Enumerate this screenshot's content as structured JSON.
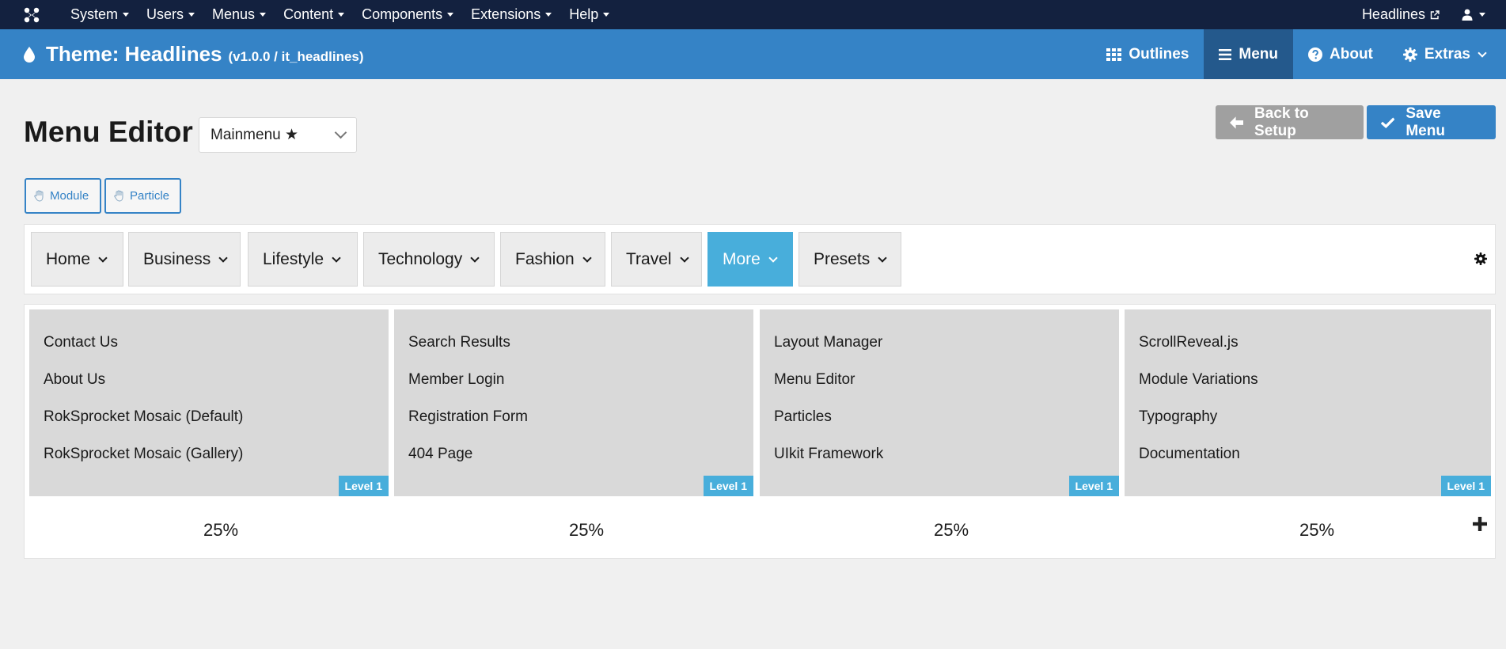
{
  "admin_bar": {
    "nav": [
      {
        "label": "System"
      },
      {
        "label": "Users"
      },
      {
        "label": "Menus"
      },
      {
        "label": "Content"
      },
      {
        "label": "Components"
      },
      {
        "label": "Extensions"
      },
      {
        "label": "Help"
      }
    ],
    "site_label": "Headlines",
    "bg_color": "#13213f"
  },
  "theme_bar": {
    "title": "Theme: Headlines",
    "version": "(v1.0.0 / it_headlines)",
    "nav": [
      {
        "label": "Outlines",
        "icon": "grid-icon"
      },
      {
        "label": "Menu",
        "icon": "bars-icon",
        "active": true
      },
      {
        "label": "About",
        "icon": "question-circle-icon"
      },
      {
        "label": "Extras",
        "icon": "gear-icon"
      }
    ],
    "bg_color": "#3583c6",
    "active_color": "#24598c"
  },
  "page": {
    "title": "Menu Editor",
    "menu_select": "Mainmenu ★",
    "back_label": "Back to Setup",
    "save_label": "Save Menu",
    "pills": {
      "module": "Module",
      "particle": "Particle"
    }
  },
  "menu_items": [
    {
      "label": "Home"
    },
    {
      "label": "Business"
    },
    {
      "label": "Lifestyle"
    },
    {
      "label": "Technology"
    },
    {
      "label": "Fashion"
    },
    {
      "label": "Travel"
    },
    {
      "label": "More",
      "active": true
    },
    {
      "label": "Presets"
    }
  ],
  "columns": [
    {
      "items": [
        "Contact Us",
        "About Us",
        "RokSprocket Mosaic (Default)",
        "RokSprocket Mosaic (Gallery)"
      ],
      "level": "Level 1",
      "width": "25%"
    },
    {
      "items": [
        "Search Results",
        "Member Login",
        "Registration Form",
        "404 Page"
      ],
      "level": "Level 1",
      "width": "25%"
    },
    {
      "items": [
        "Layout Manager",
        "Menu Editor",
        "Particles",
        "UIkit Framework"
      ],
      "level": "Level 1",
      "width": "25%"
    },
    {
      "items": [
        "ScrollReveal.js",
        "Module Variations",
        "Typography",
        "Documentation"
      ],
      "level": "Level 1",
      "width": "25%"
    }
  ],
  "accent_color": "#48aedb"
}
